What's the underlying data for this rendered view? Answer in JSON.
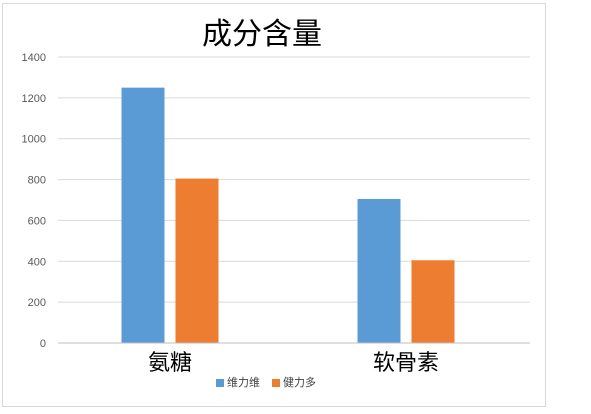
{
  "chart_data": {
    "type": "bar",
    "title": "成分含量",
    "categories": [
      "氨糖",
      "软骨素"
    ],
    "series": [
      {
        "name": "维力维",
        "color": "#5b9bd5",
        "values": [
          1250,
          705
        ]
      },
      {
        "name": "健力多",
        "color": "#ed7d31",
        "values": [
          805,
          405
        ]
      }
    ],
    "ylim": [
      0,
      1400
    ],
    "yticks": [
      0,
      200,
      400,
      600,
      800,
      1000,
      1200,
      1400
    ],
    "grid": true,
    "legend_position": "bottom",
    "xlabel": "",
    "ylabel": ""
  }
}
